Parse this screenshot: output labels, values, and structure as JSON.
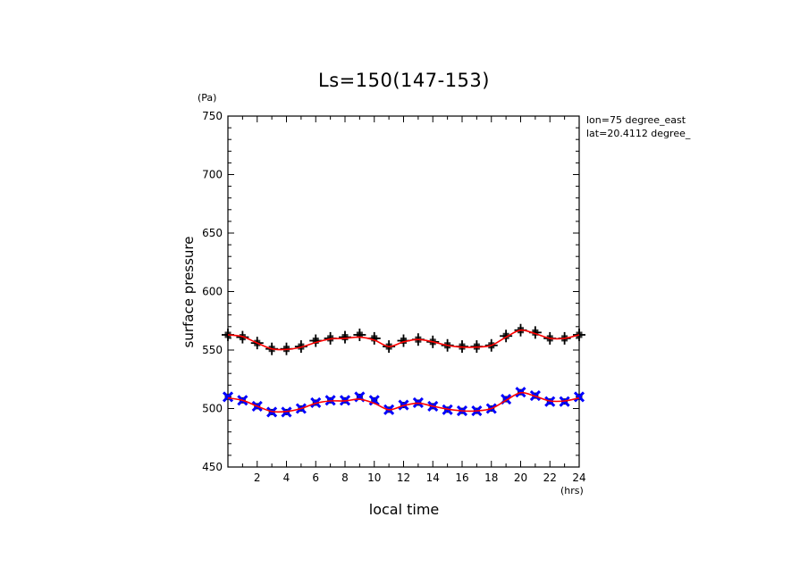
{
  "chart_data": {
    "type": "line",
    "title": "Ls=150(147-153)",
    "xlabel": "local time",
    "ylabel": "surface pressure",
    "x_unit": "(hrs)",
    "y_unit": "(Pa)",
    "annotations": [
      "lon=75 degree_east",
      "lat=20.4112 degree_"
    ],
    "xlim": [
      0,
      24
    ],
    "ylim": [
      450,
      750
    ],
    "x_ticks": [
      2,
      4,
      6,
      8,
      10,
      12,
      14,
      16,
      18,
      20,
      22,
      24
    ],
    "y_ticks": [
      450,
      500,
      550,
      600,
      650,
      700,
      750
    ],
    "x": [
      0,
      1,
      2,
      3,
      4,
      5,
      6,
      7,
      8,
      9,
      10,
      11,
      12,
      13,
      14,
      15,
      16,
      17,
      18,
      19,
      20,
      21,
      22,
      23,
      24
    ],
    "series": [
      {
        "marker": "plus",
        "color": "#000000",
        "fit_color": "#ff0000",
        "values": [
          563,
          561,
          556,
          551,
          551,
          553,
          558,
          560,
          561,
          563,
          560,
          553,
          558,
          559,
          557,
          554,
          553,
          553,
          554,
          562,
          567,
          565,
          560,
          560,
          563
        ]
      },
      {
        "marker": "x",
        "color": "#0000ff",
        "fit_color": "#ff0000",
        "values": [
          510,
          507,
          502,
          497,
          497,
          500,
          505,
          507,
          507,
          510,
          507,
          499,
          503,
          505,
          502,
          499,
          498,
          498,
          500,
          508,
          514,
          511,
          506,
          506,
          510
        ]
      }
    ],
    "fit": [
      [
        563,
        561.5,
        556,
        551,
        550.5,
        552.5,
        556.5,
        559.5,
        560,
        561,
        558.5,
        553,
        557,
        559,
        557,
        554,
        552.5,
        552.5,
        554,
        561,
        567,
        564,
        560,
        560,
        563
      ],
      [
        509,
        507,
        502,
        497.5,
        497.5,
        500,
        504.5,
        506.5,
        506.5,
        508,
        504.5,
        499,
        502.5,
        504.5,
        502,
        499.5,
        498,
        498,
        500,
        507,
        513.5,
        510.5,
        506.5,
        506.5,
        509
      ]
    ]
  }
}
